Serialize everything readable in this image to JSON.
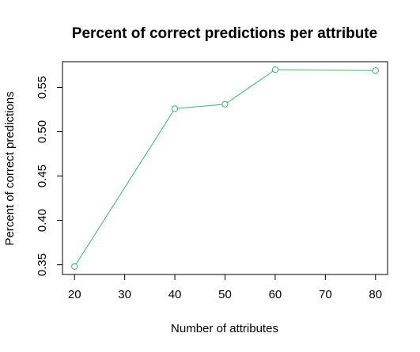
{
  "chart_data": {
    "type": "line",
    "title": "Percent of correct predictions per attribute",
    "xlabel": "Number of attributes",
    "ylabel": "Percent of correct predictions",
    "x": [
      20,
      40,
      50,
      60,
      80
    ],
    "series": [
      {
        "values": [
          0.348,
          0.526,
          0.531,
          0.57,
          0.569
        ]
      }
    ],
    "xticks": [
      20,
      30,
      40,
      50,
      60,
      70,
      80
    ],
    "xtick_labels": [
      "20",
      "30",
      "40",
      "50",
      "60",
      "70",
      "80"
    ],
    "yticks": [
      0.35,
      0.4,
      0.45,
      0.5,
      0.55
    ],
    "ytick_labels": [
      "0.35",
      "0.40",
      "0.45",
      "0.50",
      "0.55"
    ],
    "xlim": [
      17.6,
      82.4
    ],
    "ylim": [
      0.339,
      0.579
    ],
    "grid": false,
    "legend": "none",
    "marker": "open-circle",
    "line_color": "#3cb371"
  }
}
